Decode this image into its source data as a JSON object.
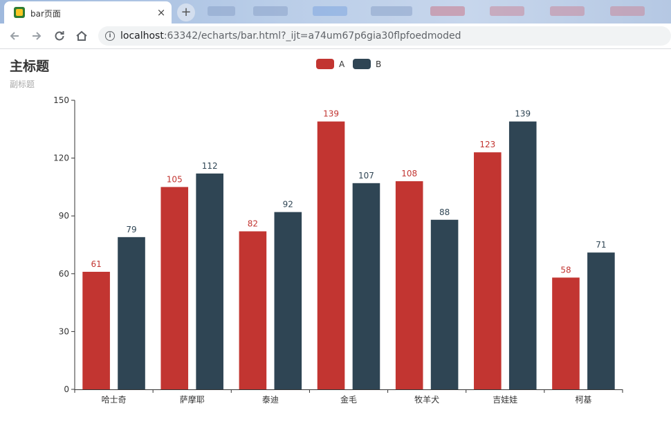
{
  "browser": {
    "tab_title": "bar页面",
    "close_glyph": "×",
    "new_tab_glyph": "+",
    "url_host": "localhost",
    "url_rest": ":63342/echarts/bar.html?_ijt=a74um67p6gia30flpfoedmoded",
    "icons": [
      "app-favicon",
      "close-icon",
      "plus-icon",
      "back-arrow-icon",
      "forward-arrow-icon",
      "reload-icon",
      "home-icon",
      "info-icon"
    ]
  },
  "chart_data": {
    "type": "bar",
    "title": "主标题",
    "subtitle": "副标题",
    "categories": [
      "哈士奇",
      "萨摩耶",
      "泰迪",
      "金毛",
      "牧羊犬",
      "吉娃娃",
      "柯基"
    ],
    "series": [
      {
        "name": "A",
        "color": "#c23531",
        "values": [
          61,
          105,
          82,
          139,
          108,
          123,
          58
        ]
      },
      {
        "name": "B",
        "color": "#2f4554",
        "values": [
          79,
          112,
          92,
          107,
          88,
          139,
          71
        ]
      }
    ],
    "ylim": [
      0,
      150
    ],
    "yticks": [
      0,
      30,
      60,
      90,
      120,
      150
    ],
    "xlabel": "",
    "ylabel": "",
    "grid": false,
    "legend_position": "top-center",
    "data_labels": "top"
  }
}
